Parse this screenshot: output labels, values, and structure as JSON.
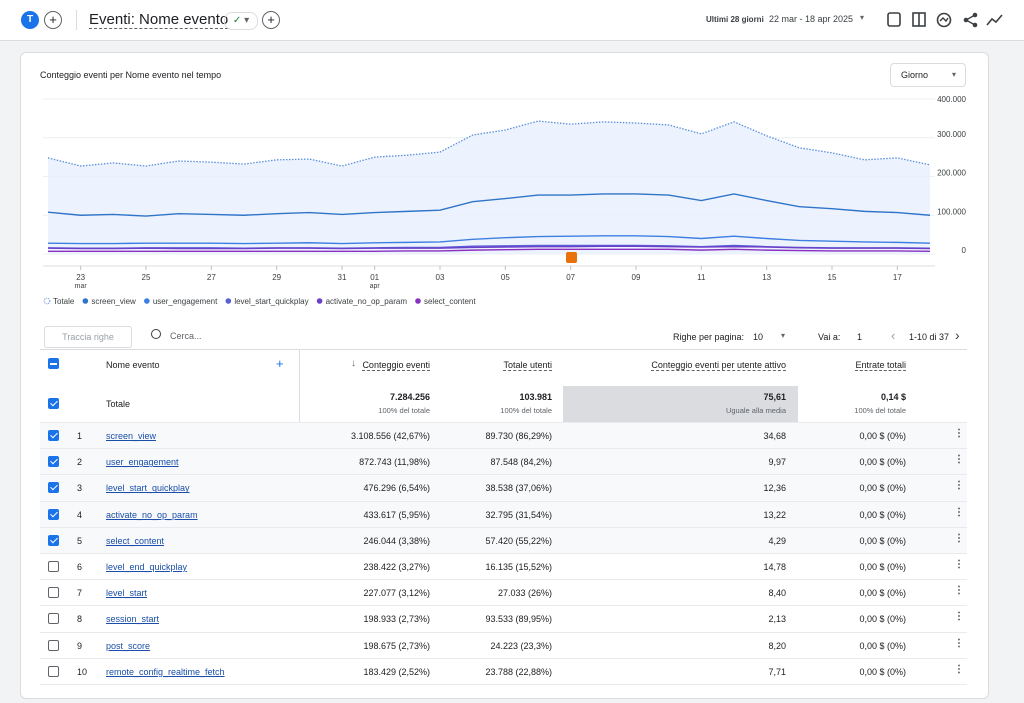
{
  "header": {
    "avatar": "T",
    "title": "Eventi: Nome evento",
    "range_label": "Ultimi 28 giorni",
    "range": "22 mar - 18 apr 2025"
  },
  "chart_data": {
    "type": "line",
    "title": "Conteggio eventi per Nome evento nel tempo",
    "granularity": "Giorno",
    "categories": [
      null,
      "23",
      null,
      "25",
      null,
      "27",
      null,
      "29",
      null,
      "31",
      "01",
      null,
      "03",
      null,
      "05",
      null,
      "07",
      null,
      "09",
      null,
      "11",
      null,
      "13",
      null,
      "15",
      null,
      "17",
      null
    ],
    "category_months": [
      null,
      "mar",
      null,
      null,
      null,
      null,
      null,
      null,
      null,
      null,
      "apr",
      null,
      null,
      null,
      null,
      null,
      null,
      null,
      null,
      null,
      null,
      null,
      null,
      null,
      null,
      null,
      null,
      null
    ],
    "ylim": [
      0,
      400000
    ],
    "yticks": [
      0,
      {
        "value": 100000,
        "label": "100.000"
      },
      {
        "value": 200000,
        "label": "200.000"
      },
      {
        "value": 300000,
        "label": "300.000"
      },
      {
        "value": 400000,
        "label": "400.000"
      }
    ],
    "grid": true,
    "series": [
      {
        "name": "Totale",
        "color": "#5b8fdc",
        "dashed": true,
        "area": true,
        "values": [
          248000,
          227000,
          235000,
          227000,
          240000,
          237000,
          232000,
          243000,
          245000,
          227000,
          250000,
          255000,
          263000,
          307000,
          320000,
          343000,
          335000,
          341000,
          338000,
          333000,
          310000,
          341000,
          305000,
          274000,
          261000,
          243000,
          248000,
          230000
        ]
      },
      {
        "name": "screen_view",
        "color": "#2f74c8",
        "values": [
          108000,
          100000,
          102000,
          98000,
          104000,
          102000,
          100000,
          104000,
          107000,
          102000,
          107000,
          110000,
          113000,
          135000,
          143000,
          152000,
          152000,
          155000,
          155000,
          152000,
          138000,
          155000,
          138000,
          122000,
          117000,
          110000,
          107000,
          100000
        ]
      },
      {
        "name": "user_engagement",
        "color": "#3d7fe0",
        "values": [
          28000,
          27000,
          27000,
          28000,
          28000,
          28000,
          27000,
          28000,
          29000,
          27000,
          29000,
          30000,
          31000,
          38000,
          42000,
          45000,
          46000,
          47000,
          47000,
          45000,
          40000,
          46000,
          40000,
          35000,
          33000,
          31000,
          30000,
          28000
        ]
      },
      {
        "name": "level_start_quickplay",
        "color": "#5a5fd6",
        "values": [
          16000,
          15000,
          15000,
          16000,
          16000,
          16000,
          15000,
          16000,
          16000,
          15000,
          16000,
          17000,
          17000,
          20000,
          21000,
          22000,
          22000,
          22000,
          22000,
          21000,
          19000,
          22000,
          19000,
          17000,
          16000,
          16000,
          16000,
          15000
        ]
      },
      {
        "name": "activate_no_op_param",
        "color": "#6b3fc8",
        "values": [
          15000,
          14000,
          14000,
          15000,
          14000,
          14000,
          14000,
          15000,
          15000,
          14000,
          15000,
          15000,
          15000,
          17000,
          18000,
          19000,
          19000,
          20000,
          20000,
          19000,
          18000,
          19000,
          18000,
          16000,
          15000,
          15000,
          15000,
          14000
        ]
      },
      {
        "name": "select_content",
        "color": "#8a2fbf",
        "values": [
          7000,
          7000,
          7000,
          7000,
          7000,
          7000,
          7000,
          7000,
          7000,
          7000,
          7000,
          8000,
          8000,
          10000,
          11000,
          12000,
          12000,
          12000,
          12000,
          12000,
          10000,
          12000,
          10000,
          9000,
          8000,
          8000,
          8000,
          7000
        ]
      }
    ]
  },
  "table": {
    "controls": {
      "track": "Traccia righe",
      "search": "Cerca...",
      "rows_per_page_label": "Righe per pagina:",
      "rows_per_page": "10",
      "goto_label": "Vai a:",
      "goto": "1",
      "pagination": "1-10 di 37"
    },
    "columns": [
      "Nome evento",
      "Conteggio eventi",
      "Totale utenti",
      "Conteggio eventi per utente attivo",
      "Entrate totali"
    ],
    "total": {
      "label": "Totale",
      "cells": [
        [
          "7.284.256",
          "100% del totale"
        ],
        [
          "103.981",
          "100% del totale"
        ],
        [
          "75,61",
          "Uguale alla media"
        ],
        [
          "0,14 $",
          "100% del totale"
        ]
      ]
    },
    "rows": [
      {
        "checked": true,
        "cells": [
          "1",
          "screen_view",
          "3.108.556 (42,67%)",
          "89.730 (86,29%)",
          "34,68",
          "0,00 $ (0%)"
        ]
      },
      {
        "checked": true,
        "cells": [
          "2",
          "user_engagement",
          "872.743 (11,98%)",
          "87.548 (84,2%)",
          "9,97",
          "0,00 $ (0%)"
        ]
      },
      {
        "checked": true,
        "cells": [
          "3",
          "level_start_quickplay",
          "476.296 (6,54%)",
          "38.538 (37,06%)",
          "12,36",
          "0,00 $ (0%)"
        ]
      },
      {
        "checked": true,
        "cells": [
          "4",
          "activate_no_op_param",
          "433.617 (5,95%)",
          "32.795 (31,54%)",
          "13,22",
          "0,00 $ (0%)"
        ]
      },
      {
        "checked": true,
        "cells": [
          "5",
          "select_content",
          "246.044 (3,38%)",
          "57.420 (55,22%)",
          "4,29",
          "0,00 $ (0%)"
        ]
      },
      {
        "checked": false,
        "cells": [
          "6",
          "level_end_quickplay",
          "238.422 (3,27%)",
          "16.135 (15,52%)",
          "14,78",
          "0,00 $ (0%)"
        ]
      },
      {
        "checked": false,
        "cells": [
          "7",
          "level_start",
          "227.077 (3,12%)",
          "27.033 (26%)",
          "8,40",
          "0,00 $ (0%)"
        ]
      },
      {
        "checked": false,
        "cells": [
          "8",
          "session_start",
          "198.933 (2,73%)",
          "93.533 (89,95%)",
          "2,13",
          "0,00 $ (0%)"
        ]
      },
      {
        "checked": false,
        "cells": [
          "9",
          "post_score",
          "198.675 (2,73%)",
          "24.223 (23,3%)",
          "8,20",
          "0,00 $ (0%)"
        ]
      },
      {
        "checked": false,
        "cells": [
          "10",
          "remote_config_realtime_fetch",
          "183.429 (2,52%)",
          "23.788 (22,88%)",
          "7,71",
          "0,00 $ (0%)"
        ]
      }
    ]
  }
}
